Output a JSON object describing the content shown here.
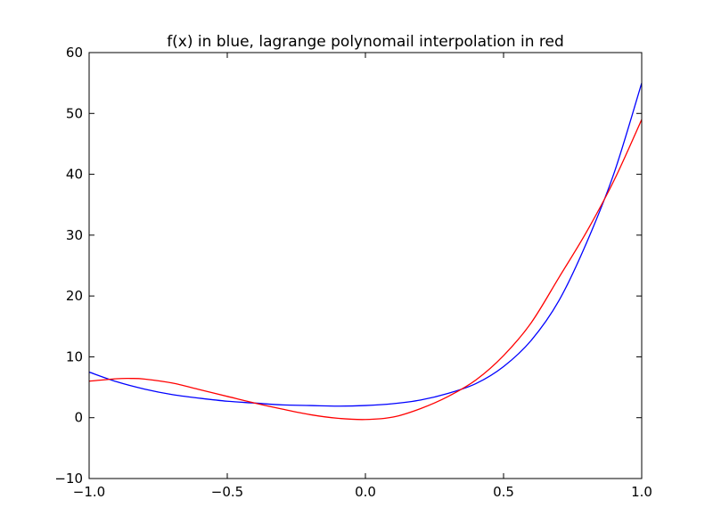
{
  "chart_data": {
    "type": "line",
    "title": "f(x) in blue, lagrange polynomail interpolation in red",
    "xlabel": "",
    "ylabel": "",
    "xlim": [
      -1.0,
      1.0
    ],
    "ylim": [
      -10,
      60
    ],
    "xticks": [
      -1.0,
      -0.5,
      0.0,
      0.5,
      1.0
    ],
    "xtick_labels": [
      "−1.0",
      "−0.5",
      "0.0",
      "0.5",
      "1.0"
    ],
    "yticks": [
      -10,
      0,
      10,
      20,
      30,
      40,
      50,
      60
    ],
    "ytick_labels": [
      "−10",
      "0",
      "10",
      "20",
      "30",
      "40",
      "50",
      "60"
    ],
    "grid": false,
    "legend": "none",
    "series": [
      {
        "color": "#0000ff",
        "x": [
          -1.0,
          -0.9,
          -0.8,
          -0.7,
          -0.6,
          -0.5,
          -0.4,
          -0.3,
          -0.2,
          -0.1,
          0.0,
          0.1,
          0.2,
          0.3,
          0.4,
          0.5,
          0.6,
          0.7,
          0.8,
          0.9,
          1.0
        ],
        "y": [
          7.5,
          5.9,
          4.7,
          3.8,
          3.2,
          2.7,
          2.4,
          2.1,
          2.0,
          1.9,
          2.0,
          2.3,
          2.9,
          4.0,
          5.6,
          8.4,
          12.7,
          19.2,
          28.7,
          40.2,
          55.0
        ]
      },
      {
        "color": "#ff0000",
        "x": [
          -1.0,
          -0.9,
          -0.85,
          -0.8,
          -0.7,
          -0.6,
          -0.5,
          -0.4,
          -0.3,
          -0.2,
          -0.1,
          0.0,
          0.1,
          0.2,
          0.3,
          0.4,
          0.5,
          0.6,
          0.7,
          0.8,
          0.9,
          1.0
        ],
        "y": [
          6.0,
          6.4,
          6.45,
          6.35,
          5.7,
          4.6,
          3.5,
          2.4,
          1.4,
          0.5,
          -0.1,
          -0.3,
          0.1,
          1.5,
          3.5,
          6.2,
          10.2,
          15.6,
          23.0,
          30.5,
          39.0,
          49.0
        ]
      }
    ]
  }
}
